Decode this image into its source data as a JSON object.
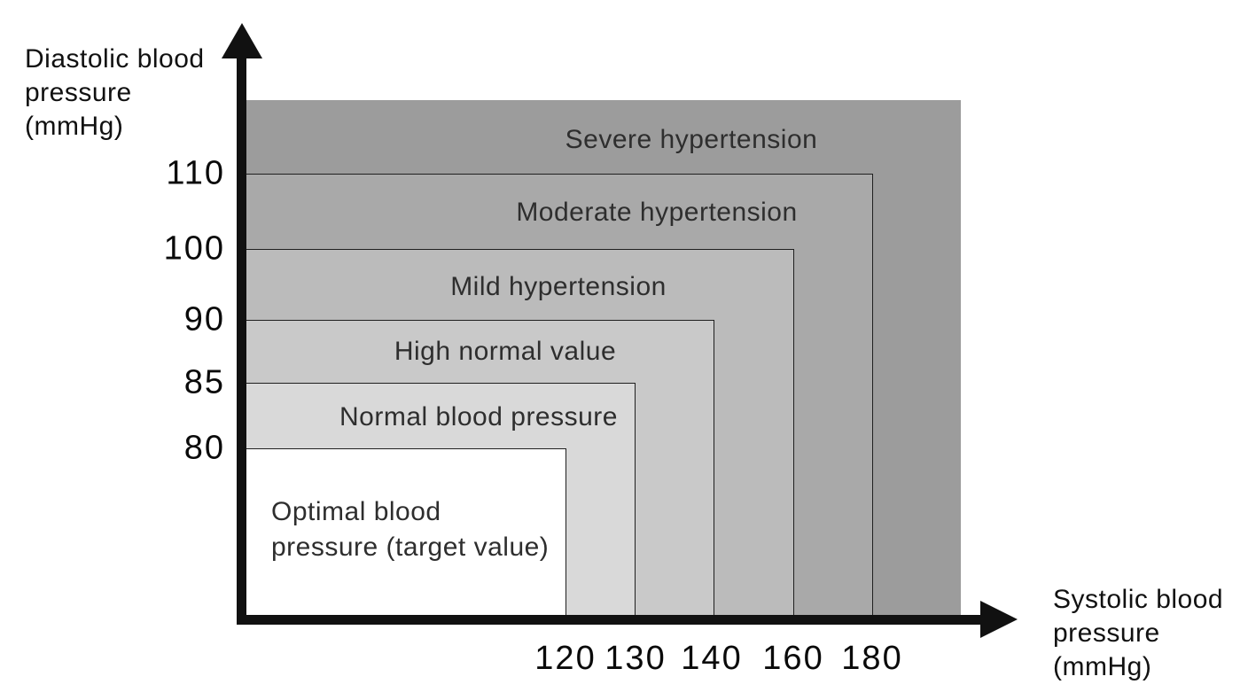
{
  "figure": {
    "background_color": "#ffffff",
    "text_color": "#111111"
  },
  "chart_data": {
    "type": "area",
    "variant": "nested-threshold-zones",
    "title": "",
    "x_axis": {
      "label": "Systolic blood\npressure\n(mmHg)",
      "tick_labels": [
        "120",
        "130",
        "140",
        "160",
        "180"
      ],
      "unit": "mmHg"
    },
    "y_axis": {
      "label": "Diastolic blood\npressure\n(mmHg)",
      "tick_labels": [
        "110",
        "100",
        "90",
        "85",
        "80"
      ],
      "unit": "mmHg"
    },
    "zones": [
      {
        "label": "Severe hypertension",
        "systolic_above": 180,
        "diastolic_above": 110,
        "color": "#9c9c9c"
      },
      {
        "label": "Moderate hypertension",
        "systolic_up_to": 180,
        "diastolic_up_to": 110,
        "color": "#a9a9a9"
      },
      {
        "label": "Mild hypertension",
        "systolic_up_to": 160,
        "diastolic_up_to": 100,
        "color": "#bbbbbb"
      },
      {
        "label": "High normal value",
        "systolic_up_to": 140,
        "diastolic_up_to": 90,
        "color": "#c9c9c9"
      },
      {
        "label": "Normal blood pressure",
        "systolic_up_to": 130,
        "diastolic_up_to": 85,
        "color": "#d9d9d9"
      },
      {
        "label": "Optimal blood\npressure (target value)",
        "systolic_up_to": 120,
        "diastolic_up_to": 80,
        "color": "#ffffff"
      }
    ],
    "icons": {
      "y_axis_arrowhead": "up-triangle",
      "x_axis_arrowhead": "right-triangle"
    }
  }
}
